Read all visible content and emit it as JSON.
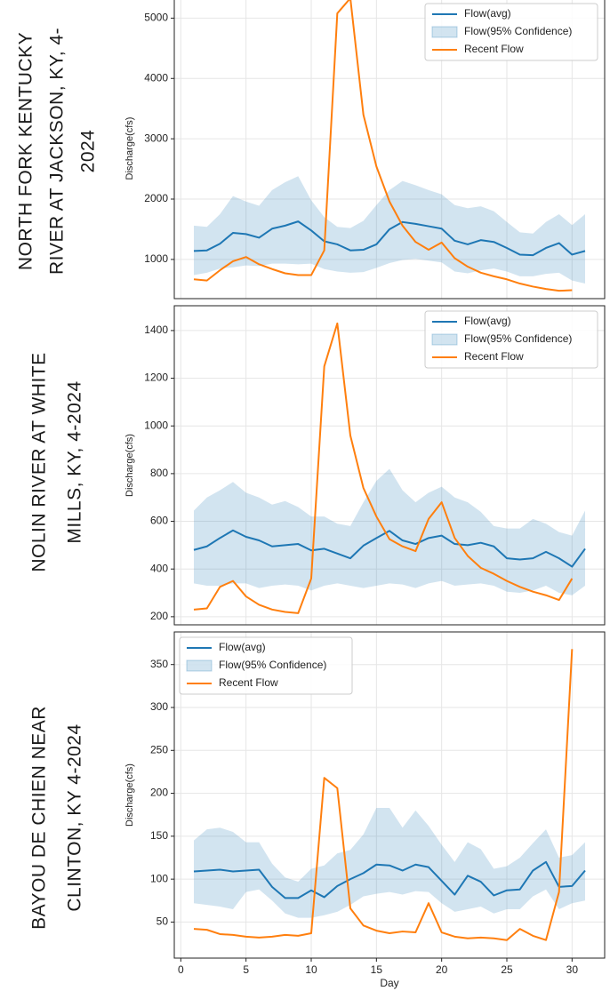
{
  "chart_data": [
    {
      "type": "line",
      "title": [
        "NORTH FORK KENTUCKY",
        "RIVER AT JACKSON, KY, 4-",
        "2024"
      ],
      "ylabel": "Discharge(cfs)",
      "x": [
        1,
        2,
        3,
        4,
        5,
        6,
        7,
        8,
        9,
        10,
        11,
        12,
        13,
        14,
        15,
        16,
        17,
        18,
        19,
        20,
        21,
        22,
        23,
        24,
        25,
        26,
        27,
        28,
        29,
        30,
        31
      ],
      "xlim": [
        -0.5,
        32.5
      ],
      "xticks": [
        0,
        5,
        10,
        15,
        20,
        25,
        30
      ],
      "ylim": [
        350,
        5330
      ],
      "yticks": [
        1000,
        2000,
        3000,
        4000,
        5000
      ],
      "grid": true,
      "legend": "upper right",
      "series": [
        {
          "name": "Flow(avg)",
          "color": "#1f77b4",
          "values": [
            1140,
            1150,
            1260,
            1440,
            1420,
            1360,
            1510,
            1560,
            1630,
            1480,
            1300,
            1250,
            1150,
            1160,
            1250,
            1500,
            1620,
            1590,
            1550,
            1510,
            1310,
            1250,
            1320,
            1290,
            1190,
            1080,
            1070,
            1190,
            1270,
            1080,
            1140
          ]
        },
        {
          "name": "Flow(95% Confidence)",
          "color": "#1f77b4",
          "type": "band",
          "upper": [
            1560,
            1540,
            1750,
            2050,
            1960,
            1890,
            2150,
            2280,
            2380,
            1980,
            1700,
            1540,
            1520,
            1640,
            1900,
            2150,
            2300,
            2230,
            2150,
            2080,
            1900,
            1850,
            1880,
            1800,
            1620,
            1450,
            1430,
            1620,
            1750,
            1570,
            1750
          ],
          "lower": [
            740,
            780,
            850,
            870,
            900,
            890,
            930,
            930,
            920,
            930,
            840,
            800,
            780,
            790,
            860,
            940,
            990,
            1010,
            980,
            950,
            800,
            770,
            820,
            850,
            800,
            720,
            720,
            760,
            780,
            650,
            600
          ]
        },
        {
          "name": "Recent Flow",
          "color": "#ff7f0e",
          "values": [
            670,
            650,
            820,
            970,
            1040,
            920,
            840,
            770,
            740,
            740,
            1150,
            5080,
            5330,
            3400,
            2540,
            1960,
            1560,
            1290,
            1160,
            1280,
            1020,
            880,
            780,
            720,
            670,
            600,
            550,
            510,
            480,
            490,
            null
          ]
        }
      ]
    },
    {
      "type": "line",
      "title": [
        "NOLIN RIVER AT WHITE",
        "MILLS, KY, 4-2024"
      ],
      "ylabel": "Discharge(cfs)",
      "x": [
        1,
        2,
        3,
        4,
        5,
        6,
        7,
        8,
        9,
        10,
        11,
        12,
        13,
        14,
        15,
        16,
        17,
        18,
        19,
        20,
        21,
        22,
        23,
        24,
        25,
        26,
        27,
        28,
        29,
        30,
        31
      ],
      "xlim": [
        -0.5,
        32.5
      ],
      "xticks": [
        0,
        5,
        10,
        15,
        20,
        25,
        30
      ],
      "ylim": [
        166,
        1504
      ],
      "yticks": [
        200,
        400,
        600,
        800,
        1000,
        1200,
        1400
      ],
      "grid": true,
      "legend": "upper right",
      "series": [
        {
          "name": "Flow(avg)",
          "color": "#1f77b4",
          "values": [
            480,
            495,
            530,
            562,
            535,
            520,
            495,
            500,
            505,
            478,
            485,
            465,
            445,
            498,
            530,
            560,
            520,
            505,
            530,
            540,
            505,
            500,
            510,
            495,
            445,
            440,
            445,
            472,
            445,
            410,
            485
          ]
        },
        {
          "name": "Flow(95% Confidence)",
          "color": "#1f77b4",
          "type": "band",
          "upper": [
            645,
            700,
            730,
            765,
            720,
            700,
            670,
            685,
            660,
            620,
            620,
            590,
            580,
            680,
            770,
            820,
            730,
            680,
            720,
            745,
            700,
            680,
            640,
            580,
            570,
            570,
            610,
            590,
            555,
            540,
            645
          ],
          "lower": [
            340,
            330,
            330,
            340,
            340,
            320,
            330,
            335,
            330,
            310,
            330,
            340,
            330,
            320,
            330,
            340,
            335,
            320,
            340,
            350,
            330,
            335,
            340,
            330,
            305,
            300,
            310,
            330,
            300,
            290,
            330
          ]
        },
        {
          "name": "Recent Flow",
          "color": "#ff7f0e",
          "values": [
            230,
            235,
            325,
            350,
            285,
            250,
            230,
            220,
            215,
            360,
            1250,
            1430,
            960,
            740,
            620,
            525,
            495,
            475,
            610,
            680,
            530,
            455,
            405,
            380,
            350,
            325,
            305,
            290,
            270,
            360,
            null
          ]
        }
      ]
    },
    {
      "type": "line",
      "title": [
        "BAYOU DE CHIEN NEAR",
        "CLINTON, KY 4-2024"
      ],
      "ylabel": "Discharge(cfs)",
      "xlabel": "Day",
      "x": [
        1,
        2,
        3,
        4,
        5,
        6,
        7,
        8,
        9,
        10,
        11,
        12,
        13,
        14,
        15,
        16,
        17,
        18,
        19,
        20,
        21,
        22,
        23,
        24,
        25,
        26,
        27,
        28,
        29,
        30,
        31
      ],
      "xlim": [
        -0.5,
        32.5
      ],
      "xticks": [
        0,
        5,
        10,
        15,
        20,
        25,
        30
      ],
      "ylim": [
        8,
        388
      ],
      "yticks": [
        50,
        100,
        150,
        200,
        250,
        300,
        350
      ],
      "grid": true,
      "legend": "upper left",
      "series": [
        {
          "name": "Flow(avg)",
          "color": "#1f77b4",
          "values": [
            109,
            110,
            111,
            109,
            110,
            111,
            91,
            78,
            78,
            87,
            79,
            92,
            100,
            107,
            117,
            116,
            110,
            117,
            114,
            98,
            82,
            104,
            97,
            81,
            87,
            88,
            110,
            120,
            91,
            92,
            110
          ]
        },
        {
          "name": "Flow(95% Confidence)",
          "color": "#1f77b4",
          "type": "band",
          "upper": [
            145,
            158,
            160,
            155,
            143,
            143,
            118,
            102,
            97,
            112,
            116,
            130,
            134,
            152,
            183,
            183,
            160,
            180,
            162,
            140,
            120,
            143,
            135,
            112,
            115,
            125,
            142,
            158,
            125,
            128,
            143
          ],
          "lower": [
            72,
            70,
            68,
            65,
            85,
            88,
            75,
            60,
            55,
            55,
            58,
            62,
            70,
            80,
            83,
            85,
            82,
            86,
            85,
            72,
            62,
            65,
            68,
            60,
            65,
            65,
            80,
            88,
            65,
            72,
            75
          ]
        },
        {
          "name": "Recent Flow",
          "color": "#ff7f0e",
          "values": [
            42,
            41,
            36,
            35,
            33,
            32,
            33,
            35,
            34,
            37,
            218,
            206,
            66,
            46,
            40,
            37,
            39,
            38,
            72,
            38,
            33,
            31,
            32,
            31,
            29,
            42,
            34,
            29,
            85,
            368,
            null
          ]
        }
      ]
    }
  ]
}
